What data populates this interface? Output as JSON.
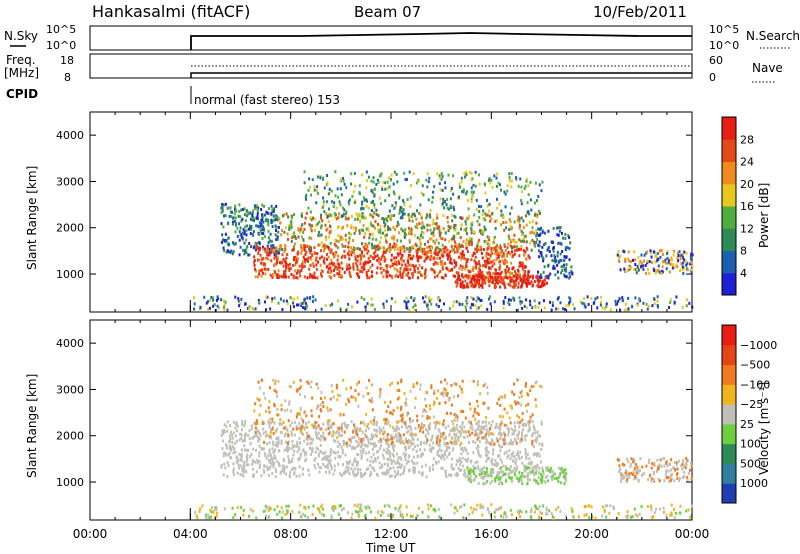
{
  "header": {
    "station": "Hankasalmi (fitACF)",
    "beam": "Beam 07",
    "date": "10/Feb/2011"
  },
  "small_panels": {
    "nsky_label": "N.Sky",
    "nsky_ticks": [
      "10^5",
      "10^0"
    ],
    "nsearch_label": "N.Search",
    "nsearch_ticks": [
      "10^5",
      "10^0"
    ],
    "freq_label_1": "Freq.",
    "freq_label_2": "[MHz]",
    "freq_ticks": [
      "18",
      "8"
    ],
    "nave_label": "Nave",
    "nave_ticks": [
      "60",
      "0"
    ],
    "cpid_label": "CPID",
    "cpid_text": "normal (fast stereo) 153"
  },
  "chart_data": [
    {
      "type": "heatmap",
      "name": "power-panel",
      "ylabel": "Slant Range [km]",
      "yticks": [
        "1000",
        "2000",
        "3000",
        "4000"
      ],
      "ylim": [
        180,
        4500
      ],
      "xlim_hours": [
        0,
        24
      ],
      "colorbar_label": "Power [dB]",
      "colorbar_ticks": [
        "4",
        "8",
        "12",
        "16",
        "20",
        "24",
        "28"
      ],
      "colorbar_colors": [
        "#1f1fd6",
        "#1b5fb0",
        "#2e8b57",
        "#4fae3e",
        "#e6c81e",
        "#f08c1e",
        "#e64a14",
        "#e61e14"
      ],
      "data_start_hour": 4.0
    },
    {
      "type": "heatmap",
      "name": "velocity-panel",
      "ylabel": "Slant Range [km]",
      "yticks": [
        "1000",
        "2000",
        "3000",
        "4000"
      ],
      "ylim": [
        180,
        4500
      ],
      "xlim_hours": [
        0,
        24
      ],
      "colorbar_label": "Velocity [m s⁻¹]",
      "colorbar_ticks": [
        "1000",
        "500",
        "100",
        "25",
        "−25",
        "−100",
        "−500",
        "−1000"
      ],
      "colorbar_colors": [
        "#1f3fb0",
        "#2f7fa0",
        "#2e8b57",
        "#6ccf3e",
        "#c0c0b8",
        "#f0b41e",
        "#f07a1e",
        "#e64614",
        "#e61e14"
      ],
      "data_start_hour": 4.0
    }
  ],
  "time_axis": {
    "ticks": [
      "00:00",
      "04:00",
      "08:00",
      "12:00",
      "16:00",
      "20:00",
      "00:00"
    ],
    "label": "Time UT"
  }
}
